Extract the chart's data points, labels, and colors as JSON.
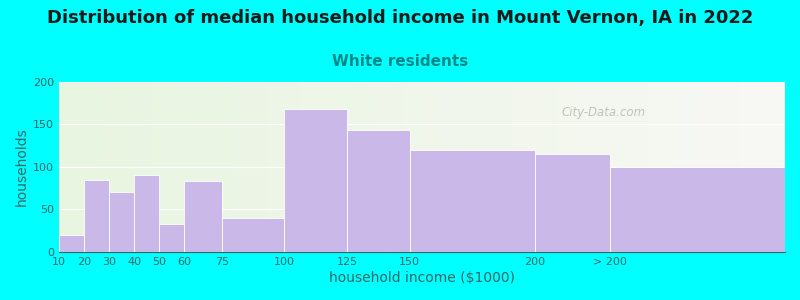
{
  "title": "Distribution of median household income in Mount Vernon, IA in 2022",
  "subtitle": "White residents",
  "xlabel": "household income ($1000)",
  "ylabel": "households",
  "bar_lefts": [
    10,
    20,
    30,
    40,
    50,
    60,
    75,
    100,
    125,
    150,
    200,
    230
  ],
  "bar_widths": [
    10,
    10,
    10,
    10,
    10,
    15,
    25,
    25,
    25,
    50,
    30,
    70
  ],
  "bar_values": [
    20,
    85,
    70,
    90,
    33,
    83,
    40,
    168,
    143,
    120,
    115,
    100
  ],
  "bar_xtick_positions": [
    10,
    20,
    30,
    40,
    50,
    60,
    75,
    100,
    125,
    150,
    200,
    230
  ],
  "bar_xtick_labels": [
    "10",
    "20",
    "30",
    "40",
    "50",
    "60",
    "75",
    "100",
    "125",
    "150",
    "200",
    "> 200"
  ],
  "bar_color": "#C9B8E8",
  "background_outer": "#00FFFF",
  "plot_bg_left_color": "#E8F5E0",
  "plot_bg_right_color": "#F8F8F5",
  "title_fontsize": 13,
  "subtitle_fontsize": 11,
  "subtitle_color": "#008888",
  "axis_label_color": "#336666",
  "tick_color": "#336666",
  "tick_fontsize": 8,
  "ylim": [
    0,
    200
  ],
  "yticks": [
    0,
    50,
    100,
    150,
    200
  ],
  "xlim": [
    10,
    300
  ],
  "watermark": "City-Data.com"
}
